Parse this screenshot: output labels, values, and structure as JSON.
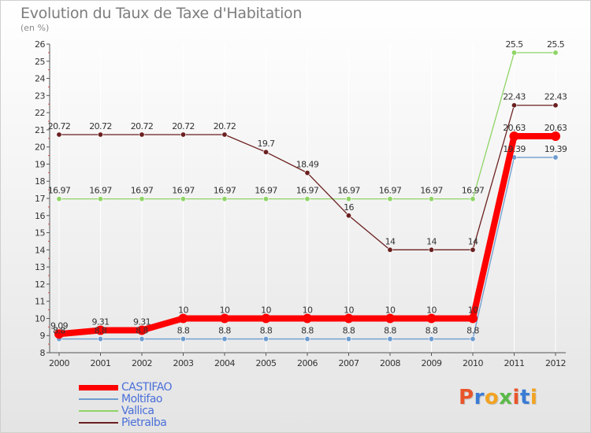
{
  "header": {
    "title": "Evolution du Taux de Taxe d'Habitation",
    "subtitle": "(en %)"
  },
  "logo": {
    "text": "Proxiti",
    "letter_colors": [
      "#e9552b",
      "#3a7bd5",
      "#f2a321",
      "#5ab947",
      "#e9552b",
      "#3a7bd5",
      "#f2a321"
    ]
  },
  "chart_data": {
    "type": "line",
    "title": "Evolution du Taux de Taxe d'Habitation",
    "ylabel": "(en %)",
    "xlabel": "",
    "x": [
      "2000",
      "2001",
      "2002",
      "2003",
      "2004",
      "2005",
      "2006",
      "2007",
      "2008",
      "2009",
      "2010",
      "2011",
      "2012"
    ],
    "ylim": [
      8,
      26
    ],
    "yticks": [
      8,
      9,
      10,
      11,
      12,
      13,
      14,
      15,
      16,
      17,
      18,
      19,
      20,
      21,
      22,
      23,
      24,
      25,
      26
    ],
    "grid": "vertical",
    "legend_position": "bottom-left",
    "series": [
      {
        "name": "CASTIFAO",
        "color": "#ff0000",
        "emphasis": true,
        "values": [
          9.09,
          9.31,
          9.31,
          10,
          10,
          10,
          10,
          10,
          10,
          10,
          10,
          20.63,
          20.63
        ],
        "labels": [
          "9.09",
          "9.31",
          "9.31",
          "10",
          "10",
          "10",
          "10",
          "10",
          "10",
          "10",
          "10",
          "20.63",
          "20.63"
        ]
      },
      {
        "name": "Moltifao",
        "color": "#6d9ccf",
        "emphasis": false,
        "values": [
          8.8,
          8.8,
          8.8,
          8.8,
          8.8,
          8.8,
          8.8,
          8.8,
          8.8,
          8.8,
          8.8,
          19.39,
          19.39
        ],
        "labels": [
          "8.8",
          "8.8",
          "8.8",
          "8.8",
          "8.8",
          "8.8",
          "8.8",
          "8.8",
          "8.8",
          "8.8",
          "8.8",
          "19.39",
          "19.39"
        ]
      },
      {
        "name": "Vallica",
        "color": "#8fd466",
        "emphasis": false,
        "values": [
          16.97,
          16.97,
          16.97,
          16.97,
          16.97,
          16.97,
          16.97,
          16.97,
          16.97,
          16.97,
          16.97,
          25.5,
          25.5
        ],
        "labels": [
          "16.97",
          "16.97",
          "16.97",
          "16.97",
          "16.97",
          "16.97",
          "16.97",
          "16.97",
          "16.97",
          "16.97",
          "16.97",
          "25.5",
          "25.5"
        ]
      },
      {
        "name": "Pietralba",
        "color": "#6b1f1f",
        "emphasis": false,
        "values": [
          20.72,
          20.72,
          20.72,
          20.72,
          20.72,
          19.7,
          18.49,
          16,
          14,
          14,
          14,
          22.43,
          22.43
        ],
        "labels": [
          "20.72",
          "20.72",
          "20.72",
          "20.72",
          "20.72",
          "19.7",
          "18.49",
          "16",
          "14",
          "14",
          "14",
          "22.43",
          "22.43"
        ]
      }
    ]
  }
}
